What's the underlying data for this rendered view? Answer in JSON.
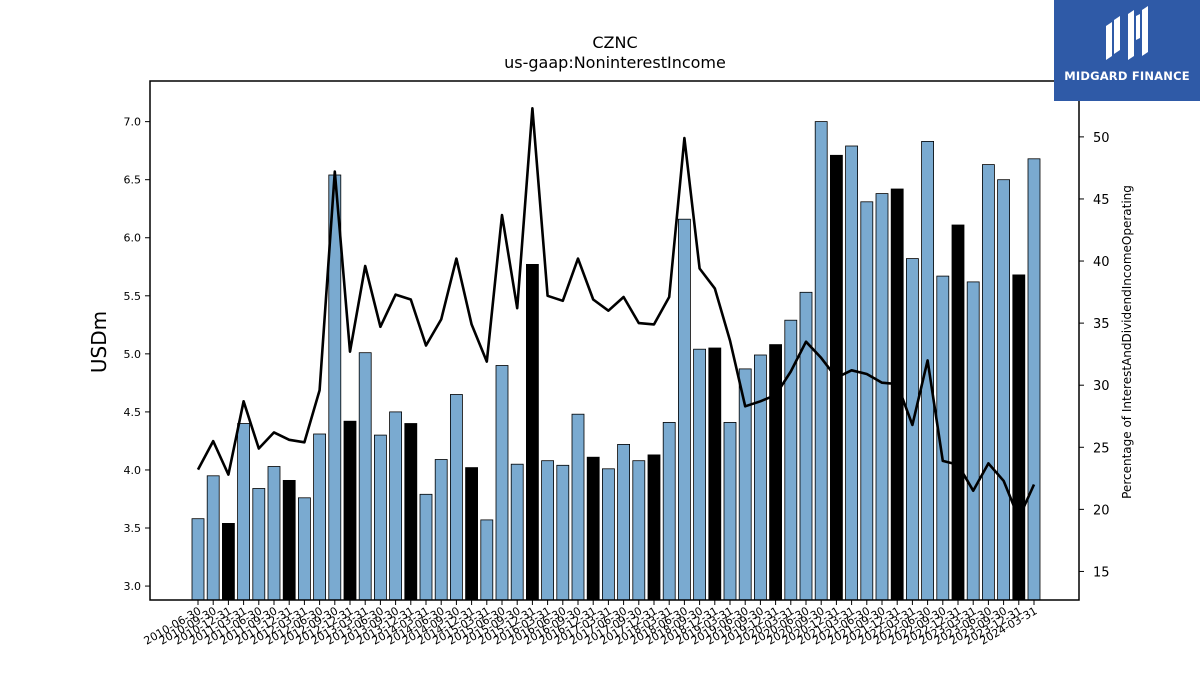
{
  "logo": {
    "text": "MIDGARD FINANCE",
    "bg": "#2f5aa7"
  },
  "chart_data": {
    "type": "bar",
    "title": "CZNC",
    "subtitle": "us-gaap:NoninterestIncome",
    "ylabel": "USDm",
    "y2label": "Percentage of InterestAndDividendIncomeOperating",
    "ylim": [
      2.88,
      7.35
    ],
    "y2lim": [
      12.7,
      54.5
    ],
    "yticks": [
      "3.0",
      "3.5",
      "4.0",
      "4.5",
      "5.0",
      "5.5",
      "6.0",
      "6.5",
      "7.0"
    ],
    "y2ticks": [
      "15",
      "20",
      "25",
      "30",
      "35",
      "40",
      "45",
      "50"
    ],
    "bar_color": "#7aaad0",
    "highlight_color": "#000000",
    "line_color": "#000000",
    "categories": [
      "2010-06-30",
      "2010-09-30",
      "2010-12-31",
      "2011-03-31",
      "2011-06-30",
      "2011-09-30",
      "2011-12-31",
      "2012-03-31",
      "2012-06-30",
      "2012-09-30",
      "2012-12-31",
      "2013-03-31",
      "2013-06-30",
      "2013-09-30",
      "2013-12-31",
      "2014-03-31",
      "2014-06-30",
      "2014-09-30",
      "2014-12-31",
      "2015-03-31",
      "2015-06-30",
      "2015-09-30",
      "2015-12-31",
      "2016-03-31",
      "2016-06-30",
      "2016-09-30",
      "2016-12-31",
      "2017-03-31",
      "2017-06-30",
      "2017-09-30",
      "2017-12-31",
      "2018-03-31",
      "2018-06-30",
      "2018-09-30",
      "2018-12-31",
      "2019-03-31",
      "2019-06-30",
      "2019-09-30",
      "2019-12-31",
      "2020-03-31",
      "2020-06-30",
      "2020-09-30",
      "2020-12-31",
      "2021-03-31",
      "2021-06-30",
      "2021-09-30",
      "2021-12-31",
      "2022-03-31",
      "2022-06-30",
      "2022-09-30",
      "2022-12-31",
      "2023-03-31",
      "2023-06-30",
      "2023-09-30",
      "2023-12-31",
      "2024-03-31"
    ],
    "series": [
      {
        "values": [
          3.58,
          3.95,
          3.54,
          4.4,
          3.84,
          4.03,
          3.91,
          3.76,
          4.31,
          6.54,
          4.42,
          5.01,
          4.3,
          4.5,
          4.4,
          3.79,
          4.09,
          4.65,
          4.02,
          3.57,
          4.9,
          4.05,
          5.77,
          4.08,
          4.04,
          4.48,
          4.11,
          4.01,
          4.22,
          4.08,
          4.13,
          4.41,
          6.16,
          5.04,
          5.05,
          4.41,
          4.87,
          4.99,
          5.08,
          5.29,
          5.53,
          7.0,
          6.71,
          6.79,
          6.31,
          6.38,
          6.42,
          5.82,
          6.83,
          5.67,
          6.11,
          5.62,
          6.63,
          6.5,
          5.68,
          6.68
        ]
      },
      {
        "values": [
          23.2,
          25.5,
          22.8,
          28.7,
          24.9,
          26.2,
          25.6,
          25.4,
          29.6,
          47.2,
          32.7,
          39.6,
          34.7,
          37.3,
          36.9,
          33.2,
          35.3,
          40.2,
          34.9,
          31.9,
          43.7,
          36.2,
          52.3,
          37.2,
          36.8,
          40.2,
          36.9,
          36.0,
          37.1,
          35.0,
          34.9,
          37.1,
          49.9,
          39.4,
          37.8,
          33.6,
          28.3,
          28.7,
          29.2,
          31.1,
          33.5,
          32.2,
          30.6,
          31.2,
          30.9,
          30.2,
          30.1,
          26.8,
          32.0,
          23.9,
          23.6,
          21.5,
          23.7,
          22.3,
          19.3,
          22.0
        ]
      }
    ]
  }
}
